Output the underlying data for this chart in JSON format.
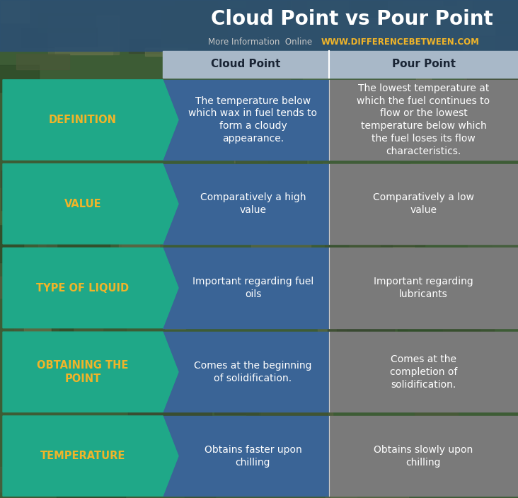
{
  "title": "Cloud Point vs Pour Point",
  "subtitle_plain": "More Information  Online  ",
  "subtitle_url": "WWW.DIFFERENCEBETWEEN.COM",
  "header_col1": "Cloud Point",
  "header_col2": "Pour Point",
  "rows": [
    {
      "label": "DEFINITION",
      "col1": "The temperature below\nwhich wax in fuel tends to\nform a cloudy\nappearance.",
      "col2": "The lowest temperature at\nwhich the fuel continues to\nflow or the lowest\ntemperature below which\nthe fuel loses its flow\ncharacteristics."
    },
    {
      "label": "VALUE",
      "col1": "Comparatively a high\nvalue",
      "col2": "Comparatively a low\nvalue"
    },
    {
      "label": "TYPE OF LIQUID",
      "col1": "Important regarding fuel\noils",
      "col2": "Important regarding\nlubricants"
    },
    {
      "label": "OBTAINING THE\nPOINT",
      "col1": "Comes at the beginning\nof solidification.",
      "col2": "Comes at the\ncompletion of\nsolidification."
    },
    {
      "label": "TEMPERATURE",
      "col1": "Obtains faster upon\nchilling",
      "col2": "Obtains slowly upon\nchilling"
    }
  ],
  "bg_nature_colors": [
    "#3d5c3a",
    "#4a6b45",
    "#556b40",
    "#6b7a50",
    "#4a5e3a"
  ],
  "title_bg_color": "#2d5070",
  "arrow_color": "#1fa888",
  "col1_color": "#3a6496",
  "col2_color": "#7a7a7a",
  "header_col_color": "#a8b8c8",
  "header_text_color": "#1a2535",
  "label_text_color": "#f0b429",
  "cell_text_color": "#ffffff",
  "title_text_color": "#ffffff",
  "subtitle_plain_color": "#c8c8c8",
  "subtitle_url_color": "#f0b429",
  "gap_color": "#2a3a28",
  "title_fontsize": 20,
  "subtitle_fontsize": 8.5,
  "header_fontsize": 11,
  "cell_fontsize": 10,
  "label_fontsize": 10.5,
  "fig_w": 7.32,
  "fig_h": 7.04,
  "dpi": 100
}
